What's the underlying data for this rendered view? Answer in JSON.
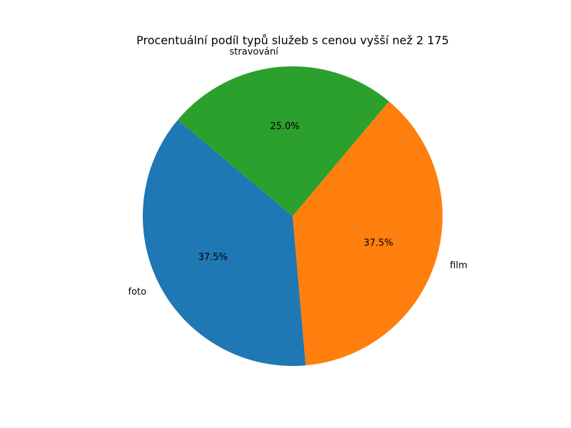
{
  "chart_data": {
    "type": "pie",
    "title": "Procentuální podíl typů služeb s cenou vyšší než 2 175",
    "slices": [
      {
        "label": "foto",
        "percent_label": "37.5%",
        "value": 37.5,
        "color": "#1f77b4"
      },
      {
        "label": "film",
        "percent_label": "37.5%",
        "value": 37.5,
        "color": "#ff7f0e"
      },
      {
        "label": "stravování",
        "percent_label": "25.0%",
        "value": 25.0,
        "color": "#2ca02c"
      }
    ],
    "start_angle_deg": 140,
    "direction": "counterclockwise"
  }
}
